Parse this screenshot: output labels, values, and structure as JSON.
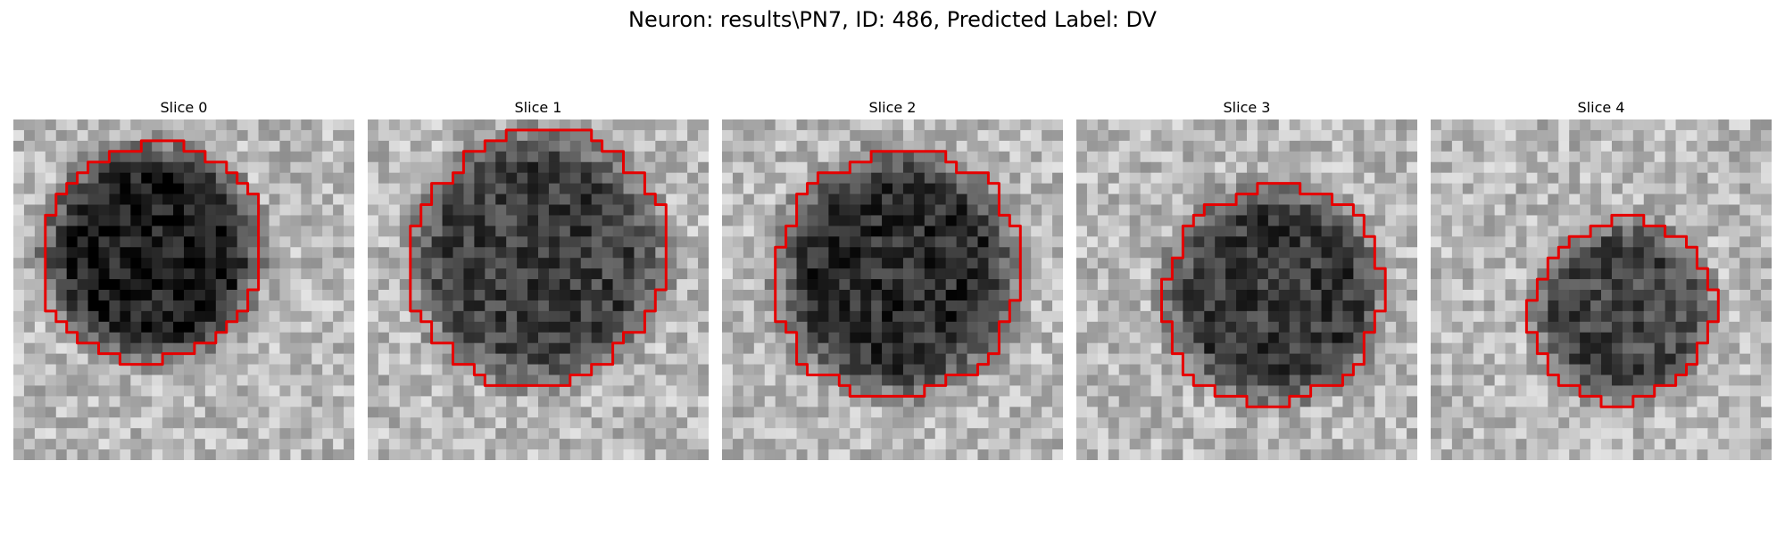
{
  "figure": {
    "title": "Neuron: results\\PN7, ID: 486, Predicted Label: DV"
  },
  "panels": [
    {
      "title": "Slice 0",
      "label": "slice-0"
    },
    {
      "title": "Slice 1",
      "label": "slice-1"
    },
    {
      "title": "Slice 2",
      "label": "slice-2"
    },
    {
      "title": "Slice 3",
      "label": "slice-3"
    },
    {
      "title": "Slice 4",
      "label": "slice-4"
    }
  ],
  "colors": {
    "contour": "#e60000",
    "background": "#ffffff",
    "cell_interior": "#3a3a3a",
    "tissue": "#b8b8b8"
  }
}
